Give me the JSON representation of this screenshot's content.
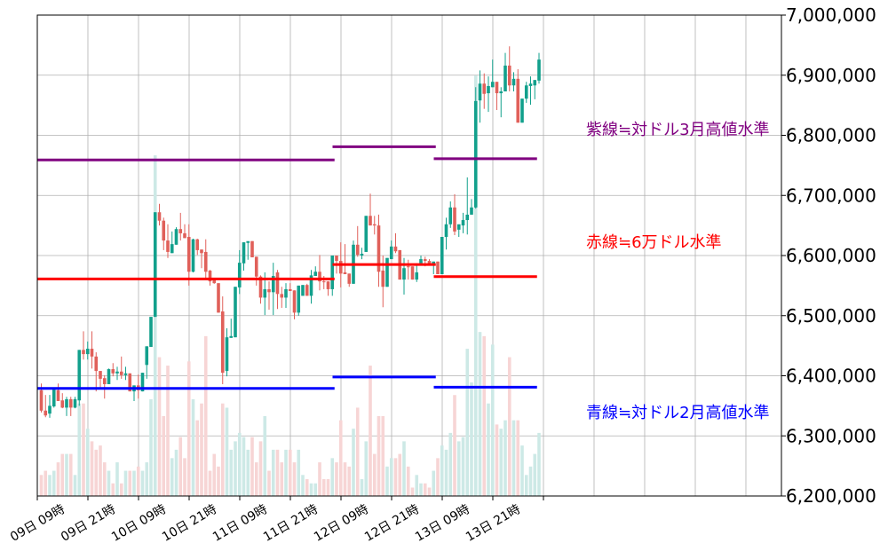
{
  "chart_data": {
    "type": "candlestick",
    "title": "",
    "xlabel": "",
    "ylabel": "",
    "ylim": [
      6200000,
      7000000
    ],
    "y_axis_position": "right",
    "yticks": [
      "6,200,000",
      "6,300,000",
      "6,400,000",
      "6,500,000",
      "6,600,000",
      "6,700,000",
      "6,800,000",
      "6,900,000",
      "7,000,000"
    ],
    "ytick_values": [
      6200000,
      6300000,
      6400000,
      6500000,
      6600000,
      6700000,
      6800000,
      6900000,
      7000000
    ],
    "xticks": [
      "09日 09時",
      "09日 21時",
      "10日 09時",
      "10日 21時",
      "11日 09時",
      "11日 21時",
      "12日 09時",
      "12日 21時",
      "13日 09時",
      "13日 21時",
      ""
    ],
    "grid": true,
    "candle_interval": "1時間",
    "colors": {
      "up": "#12a08c",
      "down": "#e0605a",
      "volume_up": "#cde9e6",
      "volume_down": "#f7d5d5",
      "purple": "#800080",
      "red": "#ff0000",
      "blue": "#0000ff"
    },
    "volume_note": "volume as percent of the largest bar (no volume axis printed)",
    "candles_columns": [
      "open",
      "high",
      "low",
      "close",
      "volume_pct"
    ],
    "candles": [
      [
        6376000,
        6387000,
        6339000,
        6342000,
        5
      ],
      [
        6342000,
        6368000,
        6331000,
        6334000,
        6
      ],
      [
        6337000,
        6368000,
        6330000,
        6350000,
        5
      ],
      [
        6349000,
        6380000,
        6347000,
        6377000,
        6
      ],
      [
        6376000,
        6387000,
        6358000,
        6358000,
        8
      ],
      [
        6359000,
        6371000,
        6346000,
        6347000,
        10
      ],
      [
        6347000,
        6365000,
        6333000,
        6361000,
        10
      ],
      [
        6361000,
        6365000,
        6333000,
        6347000,
        10
      ],
      [
        6347000,
        6365000,
        6346000,
        6361000,
        5
      ],
      [
        6359000,
        6443000,
        6350000,
        6443000,
        22
      ],
      [
        6443000,
        6474000,
        6427000,
        6436000,
        22
      ],
      [
        6436000,
        6457000,
        6427000,
        6445000,
        16
      ],
      [
        6445000,
        6474000,
        6412000,
        6432000,
        13
      ],
      [
        6432000,
        6439000,
        6374000,
        6408000,
        11
      ],
      [
        6408000,
        6408000,
        6381000,
        6395000,
        12
      ],
      [
        6396000,
        6401000,
        6362000,
        6386000,
        8
      ],
      [
        6386000,
        6412000,
        6386000,
        6411000,
        6
      ],
      [
        6411000,
        6421000,
        6399000,
        6404000,
        3
      ],
      [
        6404000,
        6415000,
        6393000,
        6407000,
        8
      ],
      [
        6407000,
        6432000,
        6395000,
        6401000,
        3
      ],
      [
        6401000,
        6415000,
        6393000,
        6404000,
        6
      ],
      [
        6404000,
        6404000,
        6374000,
        6374000,
        6
      ],
      [
        6374000,
        6384000,
        6358000,
        6384000,
        6
      ],
      [
        6384000,
        6402000,
        6362000,
        6376000,
        7
      ],
      [
        6374000,
        6405000,
        6374000,
        6405000,
        6
      ],
      [
        6418000,
        6449000,
        6395000,
        6449000,
        8
      ],
      [
        6448000,
        6498000,
        6448000,
        6498000,
        23
      ],
      [
        6498000,
        6672000,
        6498000,
        6672000,
        81
      ],
      [
        6672000,
        6686000,
        6650000,
        6658000,
        33
      ],
      [
        6658000,
        6663000,
        6609000,
        6625000,
        19
      ],
      [
        6625000,
        6652000,
        6596000,
        6606000,
        31
      ],
      [
        6604000,
        6640000,
        6604000,
        6619000,
        9
      ],
      [
        6618000,
        6647000,
        6618000,
        6644000,
        11
      ],
      [
        6644000,
        6671000,
        6625000,
        6637000,
        14
      ],
      [
        6637000,
        6652000,
        6629000,
        6629000,
        9
      ],
      [
        6631000,
        6652000,
        6550000,
        6573000,
        32
      ],
      [
        6573000,
        6628000,
        6572000,
        6627000,
        23
      ],
      [
        6627000,
        6628000,
        6601000,
        6609000,
        18
      ],
      [
        6610000,
        6610000,
        6579000,
        6604000,
        22
      ],
      [
        6606000,
        6627000,
        6560000,
        6573000,
        38
      ],
      [
        6575000,
        6576000,
        6550000,
        6557000,
        6
      ],
      [
        6560000,
        6560000,
        6553000,
        6554000,
        10
      ],
      [
        6554000,
        6554000,
        6505000,
        6505000,
        7
      ],
      [
        6507000,
        6532000,
        6386000,
        6405000,
        22
      ],
      [
        6408000,
        6479000,
        6399000,
        6464000,
        21
      ],
      [
        6463000,
        6495000,
        6463000,
        6466000,
        11
      ],
      [
        6464000,
        6548000,
        6464000,
        6548000,
        13
      ],
      [
        6547000,
        6609000,
        6536000,
        6588000,
        15
      ],
      [
        6587000,
        6622000,
        6575000,
        6622000,
        14
      ],
      [
        6621000,
        6622000,
        6593000,
        6624000,
        11
      ],
      [
        6624000,
        6624000,
        6597000,
        6597000,
        14
      ],
      [
        6598000,
        6598000,
        6550000,
        6565000,
        8
      ],
      [
        6565000,
        6567000,
        6520000,
        6530000,
        13
      ],
      [
        6530000,
        6572000,
        6501000,
        6544000,
        19
      ],
      [
        6544000,
        6557000,
        6510000,
        6539000,
        6
      ],
      [
        6539000,
        6588000,
        6501000,
        6566000,
        11
      ],
      [
        6572000,
        6576000,
        6511000,
        6536000,
        11
      ],
      [
        6536000,
        6548000,
        6513000,
        6530000,
        8
      ],
      [
        6530000,
        6554000,
        6513000,
        6544000,
        11
      ],
      [
        6544000,
        6554000,
        6541000,
        6541000,
        11
      ],
      [
        6542000,
        6542000,
        6494000,
        6505000,
        8
      ],
      [
        6505000,
        6550000,
        6500000,
        6550000,
        11
      ],
      [
        6533000,
        6551000,
        6533000,
        6551000,
        5
      ],
      [
        6551000,
        6553000,
        6533000,
        6533000,
        4
      ],
      [
        6533000,
        6576000,
        6520000,
        6567000,
        3
      ],
      [
        6566000,
        6582000,
        6566000,
        6573000,
        3
      ],
      [
        6573000,
        6601000,
        6542000,
        6557000,
        8
      ],
      [
        6557000,
        6566000,
        6544000,
        6556000,
        4
      ],
      [
        6557000,
        6557000,
        6533000,
        6544000,
        4
      ],
      [
        6544000,
        6600000,
        6533000,
        6600000,
        9
      ],
      [
        6600000,
        6600000,
        6570000,
        6591000,
        8
      ],
      [
        6591000,
        6622000,
        6547000,
        6570000,
        18
      ],
      [
        6572000,
        6619000,
        6569000,
        6569000,
        8
      ],
      [
        6570000,
        6570000,
        6548000,
        6553000,
        7
      ],
      [
        6553000,
        6625000,
        6553000,
        6618000,
        16
      ],
      [
        6618000,
        6649000,
        6598000,
        6601000,
        21
      ],
      [
        6600000,
        6613000,
        6594000,
        6603000,
        4
      ],
      [
        6606000,
        6666000,
        6606000,
        6666000,
        13
      ],
      [
        6666000,
        6703000,
        6650000,
        6650000,
        31
      ],
      [
        6652000,
        6666000,
        6635000,
        6650000,
        10
      ],
      [
        6650000,
        6668000,
        6548000,
        6573000,
        19
      ],
      [
        6575000,
        6600000,
        6514000,
        6548000,
        19
      ],
      [
        6548000,
        6596000,
        6548000,
        6596000,
        7
      ],
      [
        6594000,
        6625000,
        6594000,
        6615000,
        9
      ],
      [
        6615000,
        6637000,
        6604000,
        6607000,
        9
      ],
      [
        6609000,
        6609000,
        6560000,
        6560000,
        10
      ],
      [
        6560000,
        6596000,
        6535000,
        6579000,
        13
      ],
      [
        6582000,
        6593000,
        6560000,
        6581000,
        7
      ],
      [
        6582000,
        6582000,
        6560000,
        6560000,
        2
      ],
      [
        6560000,
        6587000,
        6556000,
        6572000,
        5
      ],
      [
        6587000,
        6600000,
        6587000,
        6594000,
        3
      ],
      [
        6594000,
        6598000,
        6582000,
        6591000,
        3
      ],
      [
        6591000,
        6594000,
        6585000,
        6585000,
        2
      ],
      [
        6585000,
        6590000,
        6569000,
        6590000,
        6
      ],
      [
        6590000,
        6590000,
        6569000,
        6569000,
        9
      ],
      [
        6569000,
        6631000,
        6569000,
        6631000,
        12
      ],
      [
        6631000,
        6663000,
        6610000,
        6652000,
        11
      ],
      [
        6652000,
        6690000,
        6646000,
        6680000,
        15
      ],
      [
        6680000,
        6702000,
        6634000,
        6640000,
        24
      ],
      [
        6643000,
        6649000,
        6631000,
        6652000,
        13
      ],
      [
        6650000,
        6671000,
        6637000,
        6659000,
        14
      ],
      [
        6659000,
        6730000,
        6635000,
        6668000,
        35
      ],
      [
        6668000,
        6694000,
        6668000,
        6680000,
        27
      ],
      [
        6680000,
        6880000,
        6678000,
        6857000,
        100
      ],
      [
        6858000,
        6908000,
        6821000,
        6886000,
        39
      ],
      [
        6886000,
        6903000,
        6844000,
        6869000,
        38
      ],
      [
        6870000,
        6898000,
        6839000,
        6882000,
        22
      ],
      [
        6880000,
        6926000,
        6880000,
        6889000,
        36
      ],
      [
        6889000,
        6889000,
        6842000,
        6870000,
        17
      ],
      [
        6870000,
        6880000,
        6830000,
        6873000,
        16
      ],
      [
        6873000,
        6937000,
        6873000,
        6916000,
        18
      ],
      [
        6916000,
        6948000,
        6873000,
        6883000,
        33
      ],
      [
        6883000,
        6905000,
        6873000,
        6894000,
        18
      ],
      [
        6894000,
        6910000,
        6821000,
        6821000,
        18
      ],
      [
        6821000,
        6861000,
        6821000,
        6861000,
        12
      ],
      [
        6861000,
        6889000,
        6854000,
        6883000,
        5
      ],
      [
        6882000,
        6898000,
        6851000,
        6886000,
        7
      ],
      [
        6883000,
        6892000,
        6860000,
        6892000,
        10
      ],
      [
        6891000,
        6937000,
        6886000,
        6926000,
        15
      ]
    ],
    "levels": [
      {
        "name": "purple",
        "label": "紫線≒対ドル3月高値水準",
        "color": "#800080",
        "segments": [
          {
            "from": 0,
            "to": 69,
            "value": 6759000
          },
          {
            "from": 70,
            "to": 93,
            "value": 6781000
          },
          {
            "from": 94,
            "to": 117,
            "value": 6761000
          }
        ]
      },
      {
        "name": "red",
        "label": "赤線≒6万ドル水準",
        "color": "#ff0000",
        "segments": [
          {
            "from": 0,
            "to": 69,
            "value": 6561000
          },
          {
            "from": 70,
            "to": 93,
            "value": 6585000
          },
          {
            "from": 94,
            "to": 117,
            "value": 6565000
          }
        ]
      },
      {
        "name": "blue",
        "label": "青線≒対ドル2月高値水準",
        "color": "#0000ff",
        "segments": [
          {
            "from": 0,
            "to": 69,
            "value": 6379000
          },
          {
            "from": 70,
            "to": 93,
            "value": 6398000
          },
          {
            "from": 94,
            "to": 117,
            "value": 6381000
          }
        ]
      }
    ]
  }
}
